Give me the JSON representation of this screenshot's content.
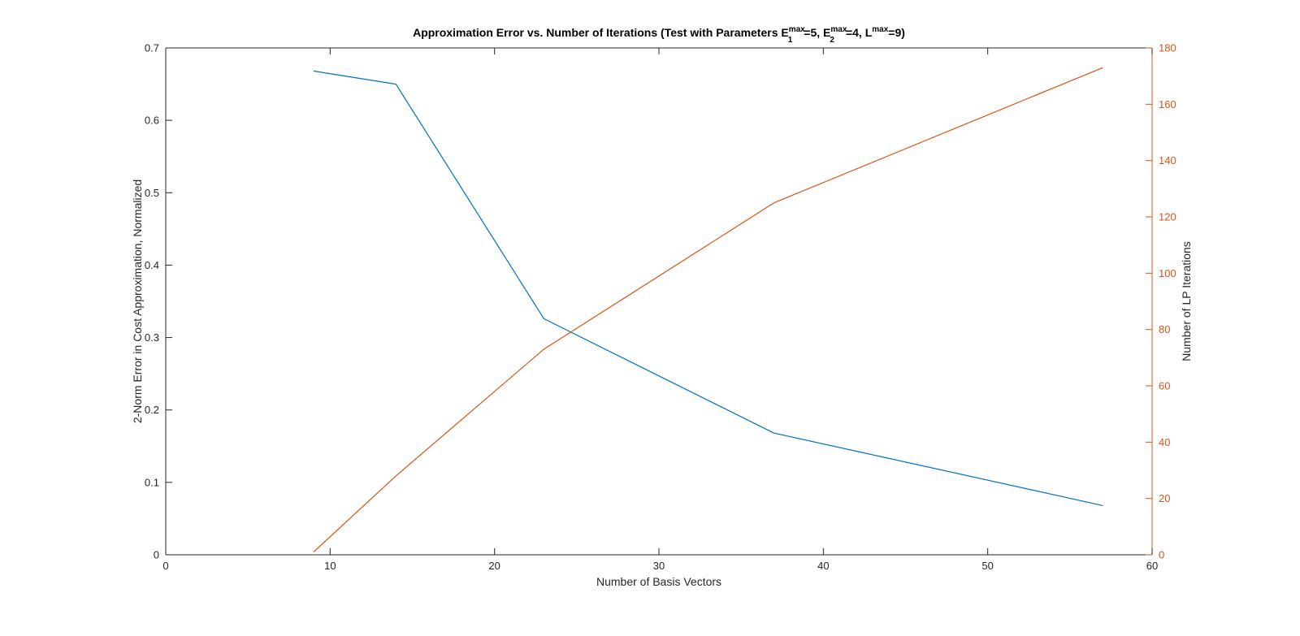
{
  "chart_data": {
    "type": "line",
    "title": {
      "prefix": "Approximation Error vs. Number of Iterations (Test with Parameters E",
      "e1_sub": "1",
      "e1_sup": "max",
      "e1_val": "=5, E",
      "e2_sub": "2",
      "e2_sup": "max",
      "e2_val": "=4, L",
      "l_sup": "max",
      "suffix": "=9)"
    },
    "xlabel": "Number of Basis Vectors",
    "ylabel_left": "2-Norm Error in Cost Approximation, Normalized",
    "ylabel_right": "Number of LP Iterations",
    "xlim": [
      0,
      60
    ],
    "ylim_left": [
      0,
      0.7
    ],
    "ylim_right": [
      0,
      180
    ],
    "xticks": [
      0,
      10,
      20,
      30,
      40,
      50,
      60
    ],
    "yticks_left": [
      0,
      0.1,
      0.2,
      0.3,
      0.4,
      0.5,
      0.6,
      0.7
    ],
    "yticks_right": [
      0,
      20,
      40,
      60,
      80,
      100,
      120,
      140,
      160,
      180
    ],
    "grid": false,
    "series": [
      {
        "axis": "left",
        "color": "#0072BD",
        "x": [
          9,
          14,
          23,
          37,
          57
        ],
        "y": [
          0.668,
          0.65,
          0.326,
          0.168,
          0.068
        ]
      },
      {
        "axis": "right",
        "color": "#D95319",
        "x": [
          9,
          14,
          23,
          37,
          57
        ],
        "y": [
          1,
          28,
          73,
          125,
          173
        ]
      }
    ],
    "colors": {
      "axis": "#262626",
      "right_axis": "#D95319"
    }
  }
}
